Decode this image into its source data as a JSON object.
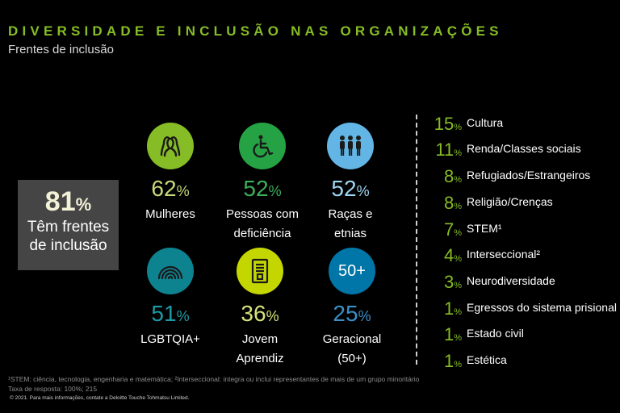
{
  "header": {
    "title": "DIVERSIDADE E INCLUSÃO NAS ORGANIZAÇÕES",
    "subtitle": "Frentes de inclusão"
  },
  "summary": {
    "value": "81",
    "unit": "%",
    "label_line1": "Têm frentes",
    "label_line2": "de inclusão"
  },
  "categories": [
    {
      "value": "62",
      "unit": "%",
      "line1": "Mulheres",
      "line2": "",
      "circle_color": "#86bc25",
      "pct_color": "#c7da7b",
      "icon": "women-icon"
    },
    {
      "value": "52",
      "unit": "%",
      "line1": "Pessoas com",
      "line2": "deficiência",
      "circle_color": "#25a244",
      "pct_color": "#3fae5a",
      "icon": "wheelchair-icon"
    },
    {
      "value": "52",
      "unit": "%",
      "line1": "Raças e",
      "line2": "etnias",
      "circle_color": "#62b5e5",
      "pct_color": "#9fd4f2",
      "icon": "people-icon"
    },
    {
      "value": "51",
      "unit": "%",
      "line1": "LGBTQIA+",
      "line2": "",
      "circle_color": "#0d8390",
      "pct_color": "#1e9aa6",
      "icon": "rainbow-icon"
    },
    {
      "value": "36",
      "unit": "%",
      "line1": "Jovem",
      "line2": "Aprendiz",
      "circle_color": "#c4d600",
      "pct_color": "#d6e37a",
      "icon": "document-icon"
    },
    {
      "value": "25",
      "unit": "%",
      "line1": "Geracional",
      "line2": "(50+)",
      "circle_color": "#0076a8",
      "pct_color": "#3a8fc7",
      "icon": "fifty-plus-icon",
      "icon_text": "50+"
    }
  ],
  "list": [
    {
      "value": "15",
      "unit": "%",
      "label": "Cultura"
    },
    {
      "value": "11",
      "unit": "%",
      "label": "Renda/Classes sociais"
    },
    {
      "value": "8",
      "unit": "%",
      "label": "Refugiados/Estrangeiros"
    },
    {
      "value": "8",
      "unit": "%",
      "label": "Religião/Crenças"
    },
    {
      "value": "7",
      "unit": "%",
      "label": "STEM¹"
    },
    {
      "value": "4",
      "unit": "%",
      "label": "Interseccional²"
    },
    {
      "value": "3",
      "unit": "%",
      "label": "Neurodiversidade"
    },
    {
      "value": "1",
      "unit": "%",
      "label": "Egressos do sistema prisional"
    },
    {
      "value": "1",
      "unit": "%",
      "label": "Estado civil"
    },
    {
      "value": "1",
      "unit": "%",
      "label": "Estética"
    }
  ],
  "footnotes": {
    "line1": "¹STEM: ciência, tecnologia, engenharia e matemática; ²Interseccional: integra ou inclui representantes de mais de um grupo minoritário",
    "line2": "Taxa de resposta: 100%; 215",
    "copyright": "© 2021. Para mais informações, contate a Deloitte Touche Tohmatsu Limited."
  },
  "chart_data": {
    "type": "table",
    "title": "DIVERSIDADE E INCLUSÃO NAS ORGANIZAÇÕES",
    "subtitle": "Frentes de inclusão",
    "unit": "%",
    "summary": {
      "label": "Têm frentes de inclusão",
      "value": 81
    },
    "categories": [
      "Mulheres",
      "Pessoas com deficiência",
      "Raças e etnias",
      "LGBTQIA+",
      "Jovem Aprendiz",
      "Geracional (50+)",
      "Cultura",
      "Renda/Classes sociais",
      "Refugiados/Estrangeiros",
      "Religião/Crenças",
      "STEM¹",
      "Interseccional²",
      "Neurodiversidade",
      "Egressos do sistema prisional",
      "Estado civil",
      "Estética"
    ],
    "values": [
      62,
      52,
      52,
      51,
      36,
      25,
      15,
      11,
      8,
      8,
      7,
      4,
      3,
      1,
      1,
      1
    ]
  }
}
